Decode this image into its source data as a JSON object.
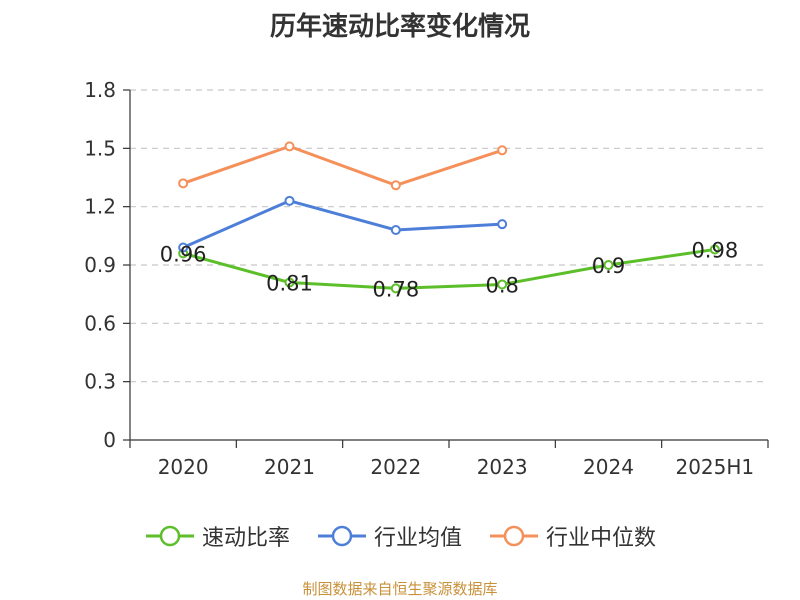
{
  "chart_data": {
    "type": "line",
    "title": "历年速动比率变化情况",
    "categories": [
      "2020",
      "2021",
      "2022",
      "2023",
      "2024",
      "2025H1"
    ],
    "y_ticks": [
      "0",
      "0.3",
      "0.6",
      "0.9",
      "1.2",
      "1.5",
      "1.8"
    ],
    "ylim": [
      0,
      1.8
    ],
    "grid": true,
    "legend_position": "bottom",
    "series": [
      {
        "name": "速动比率",
        "color": "#5cbf2a",
        "values": [
          0.96,
          0.81,
          0.78,
          0.8,
          0.9,
          0.98
        ],
        "labels": [
          "0.96",
          "0.81",
          "0.78",
          "0.8",
          "0.9",
          "0.98"
        ]
      },
      {
        "name": "行业均值",
        "color": "#4d7fd8",
        "values": [
          0.99,
          1.23,
          1.08,
          1.11,
          null,
          null
        ]
      },
      {
        "name": "行业中位数",
        "color": "#f5905a",
        "values": [
          1.32,
          1.51,
          1.31,
          1.49,
          null,
          null
        ]
      }
    ]
  },
  "footer": {
    "source": "制图数据来自恒生聚源数据库"
  }
}
